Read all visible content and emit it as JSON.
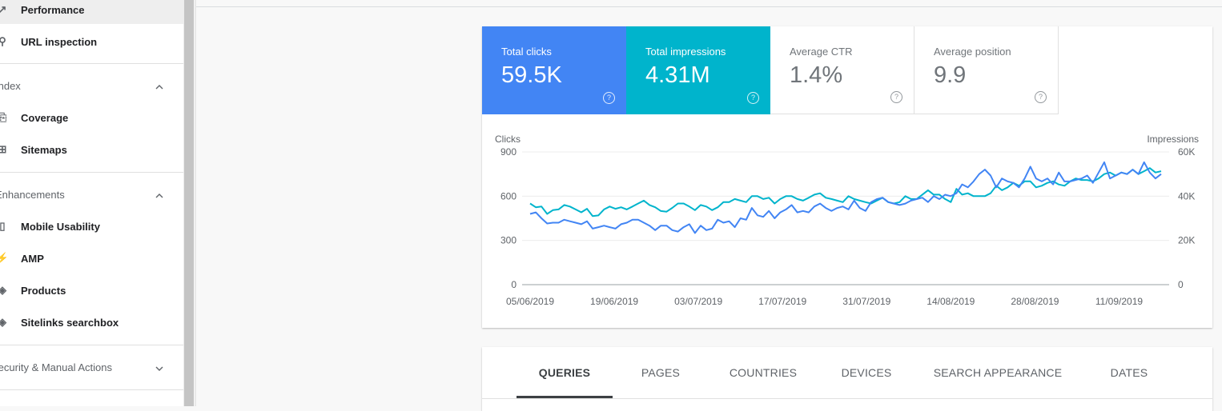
{
  "sidebar": {
    "items": [
      {
        "label": "Performance",
        "icon": "trending-up-icon",
        "glyph": "↗"
      },
      {
        "label": "URL inspection",
        "icon": "search-icon",
        "glyph": "⚲"
      }
    ],
    "index": {
      "header": "Index",
      "items": [
        {
          "label": "Coverage",
          "icon": "file-copy-icon",
          "glyph": "⎘"
        },
        {
          "label": "Sitemaps",
          "icon": "sitemap-icon",
          "glyph": "⊞"
        }
      ]
    },
    "enhancements": {
      "header": "Enhancements",
      "items": [
        {
          "label": "Mobile Usability",
          "icon": "smartphone-icon",
          "glyph": "▯"
        },
        {
          "label": "AMP",
          "icon": "lightning-icon",
          "glyph": "⚡"
        },
        {
          "label": "Products",
          "icon": "layers-icon",
          "glyph": "◈"
        },
        {
          "label": "Sitelinks searchbox",
          "icon": "layers-icon",
          "glyph": "◈"
        }
      ]
    },
    "security": {
      "header": "Security & Manual Actions"
    }
  },
  "metrics": {
    "clicks": {
      "label": "Total clicks",
      "value": "59.5K"
    },
    "impressions": {
      "label": "Total impressions",
      "value": "4.31M"
    },
    "ctr": {
      "label": "Average CTR",
      "value": "1.4%"
    },
    "position": {
      "label": "Average position",
      "value": "9.9"
    },
    "help_glyph": "?"
  },
  "colors": {
    "clicks": "#4285f4",
    "impressions": "#00b4cc"
  },
  "tabs": [
    "QUERIES",
    "PAGES",
    "COUNTRIES",
    "DEVICES",
    "SEARCH APPEARANCE",
    "DATES"
  ],
  "active_tab": "QUERIES",
  "chart_data": {
    "type": "line",
    "left_axis_label": "Clicks",
    "right_axis_label": "Impressions",
    "left_ticks": [
      "900",
      "600",
      "300",
      "0"
    ],
    "right_ticks": [
      "60K",
      "40K",
      "20K",
      "0"
    ],
    "ylim_left": [
      0,
      900
    ],
    "ylim_right": [
      0,
      60000
    ],
    "x_tick_labels": [
      "05/06/2019",
      "19/06/2019",
      "03/07/2019",
      "17/07/2019",
      "31/07/2019",
      "14/08/2019",
      "28/08/2019",
      "11/09/2019"
    ],
    "x_start": "05/06/2019",
    "x_end": "18/09/2019",
    "grid": true,
    "series": [
      {
        "name": "Clicks",
        "axis": "left",
        "values": [
          480,
          490,
          450,
          415,
          420,
          420,
          440,
          430,
          420,
          410,
          430,
          380,
          390,
          400,
          390,
          380,
          410,
          420,
          440,
          440,
          420,
          400,
          370,
          400,
          400,
          370,
          360,
          390,
          410,
          350,
          400,
          370,
          380,
          440,
          420,
          430,
          390,
          450,
          440,
          520,
          470,
          460,
          500,
          450,
          490,
          510,
          540,
          490,
          500,
          490,
          530,
          550,
          520,
          500,
          520,
          530,
          510,
          570,
          520,
          500,
          560,
          580,
          590,
          560,
          550,
          540,
          550,
          570,
          580,
          590,
          560,
          600,
          580,
          610,
          600,
          620,
          680,
          660,
          700,
          750,
          780,
          740,
          660,
          720,
          700,
          690,
          660,
          720,
          800,
          720,
          700,
          720,
          680,
          760,
          700,
          700,
          710,
          720,
          740,
          690,
          760,
          830,
          720,
          740,
          760,
          750,
          780,
          750,
          830,
          760,
          720,
          750
        ]
      },
      {
        "name": "Impressions",
        "axis": "right",
        "values": [
          36700,
          35000,
          35300,
          32000,
          33700,
          34000,
          36000,
          35300,
          34000,
          32700,
          34300,
          31000,
          31300,
          34000,
          35300,
          34300,
          35000,
          34000,
          35300,
          36700,
          38000,
          36000,
          35000,
          33300,
          33000,
          34700,
          36700,
          36700,
          35300,
          33700,
          36000,
          35300,
          33700,
          35000,
          37300,
          37300,
          38700,
          38000,
          37300,
          40000,
          40000,
          38700,
          39300,
          36700,
          38700,
          40000,
          40000,
          38700,
          38000,
          39300,
          40700,
          41300,
          39300,
          38700,
          38000,
          37300,
          40000,
          38700,
          38000,
          37300,
          36700,
          38000,
          39300,
          37300,
          36700,
          37300,
          40000,
          38700,
          38700,
          40700,
          42700,
          40700,
          40700,
          38700,
          37300,
          43300,
          40700,
          41300,
          40000,
          40000,
          40000,
          41300,
          44700,
          42700,
          44000,
          46000,
          44700,
          46700,
          46700,
          44000,
          44700,
          46000,
          46700,
          45300,
          44700,
          46700,
          48000,
          47300,
          47300,
          46700,
          48000,
          50000,
          50700,
          49300,
          50700,
          50000,
          52000,
          50000,
          51300,
          52700,
          50700,
          51300
        ]
      }
    ]
  }
}
